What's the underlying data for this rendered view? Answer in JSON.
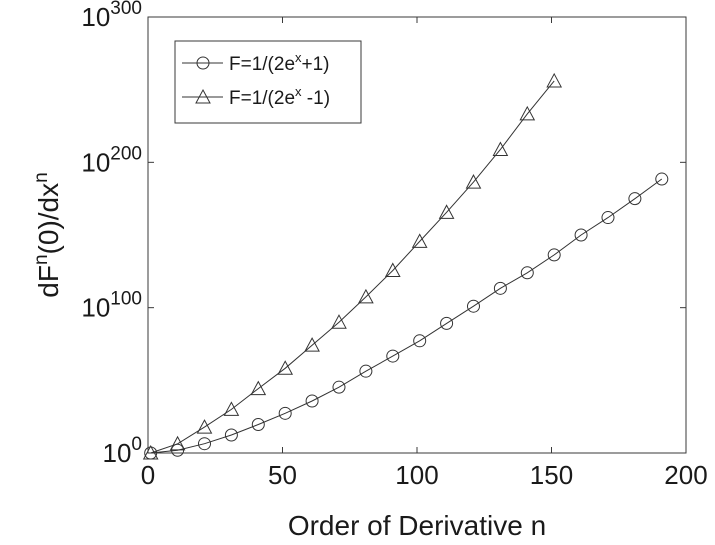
{
  "chart_data": {
    "type": "line",
    "title": "",
    "xlabel": "Order of Derivative n",
    "ylabel": {
      "base": "dF",
      "sup1": "n",
      "mid": "(0)/dx",
      "sup2": "n"
    },
    "xlim": [
      0,
      200
    ],
    "ylim_log10": [
      0,
      300
    ],
    "yscale": "log",
    "grid": false,
    "legend_position": "top-left",
    "x_ticks": [
      {
        "value": 0,
        "label": "0"
      },
      {
        "value": 50,
        "label": "50"
      },
      {
        "value": 100,
        "label": "100"
      },
      {
        "value": 150,
        "label": "150"
      },
      {
        "value": 200,
        "label": "200"
      }
    ],
    "y_ticks": [
      {
        "exp": 0,
        "base": "10",
        "sup": "0"
      },
      {
        "exp": 100,
        "base": "10",
        "sup": "100"
      },
      {
        "exp": 200,
        "base": "10",
        "sup": "200"
      },
      {
        "exp": 300,
        "base": "10",
        "sup": "300"
      }
    ],
    "series": [
      {
        "marker": "circle",
        "legend": {
          "pre": "F=1/(2e",
          "sup": "x",
          "post": "+1)"
        },
        "x": [
          1,
          11,
          21,
          31,
          41,
          51,
          61,
          71,
          81,
          91,
          101,
          111,
          121,
          131,
          141,
          151,
          161,
          171,
          181,
          191
        ],
        "log10_y": [
          0,
          1.9,
          6.4,
          12.4,
          19.6,
          27.3,
          35.8,
          45.3,
          56.3,
          66.7,
          77.2,
          89.2,
          101.0,
          113.3,
          124.0,
          136.3,
          150.0,
          162.0,
          175.0,
          188.5
        ]
      },
      {
        "marker": "triangle",
        "legend": {
          "pre": "F=1/(2e",
          "sup": "x",
          "post": " -1)"
        },
        "x": [
          1,
          11,
          21,
          31,
          41,
          51,
          61,
          71,
          81,
          91,
          101,
          111,
          121,
          131,
          141,
          151
        ],
        "log10_y": [
          0,
          6.3,
          17.8,
          30.0,
          44.3,
          58.3,
          74.2,
          90.0,
          107.4,
          125.6,
          145.6,
          165.6,
          186.4,
          208.8,
          233.3,
          256.0
        ]
      }
    ]
  }
}
